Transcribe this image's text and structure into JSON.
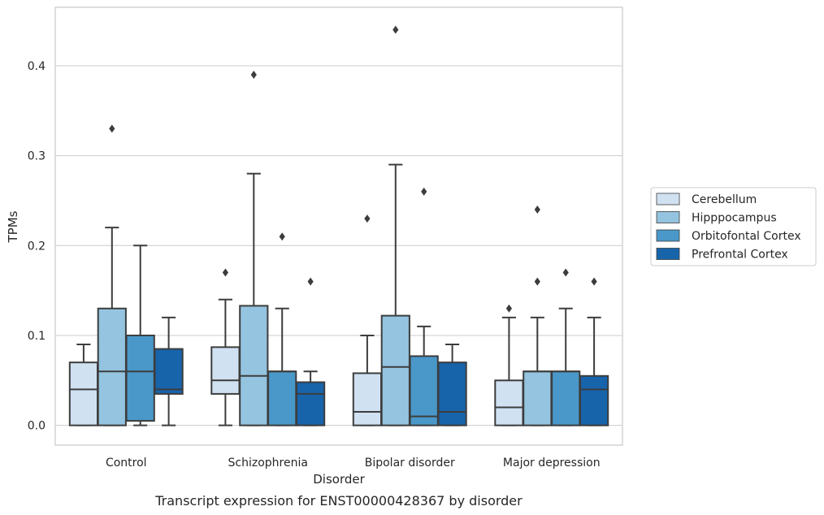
{
  "chart_data": {
    "type": "box",
    "title": "",
    "caption": "Transcript expression for ENST00000428367 by disorder",
    "xlabel": "Disorder",
    "ylabel": "TPMs",
    "ylim": [
      -0.022,
      0.465
    ],
    "yticks": [
      0.0,
      0.1,
      0.2,
      0.3,
      0.4
    ],
    "ytick_labels": [
      "0.0",
      "0.1",
      "0.2",
      "0.3",
      "0.4"
    ],
    "grid": "horizontal",
    "legend_position": "right",
    "categories": [
      "Control",
      "Schizophrenia",
      "Bipolar disorder",
      "Major depression"
    ],
    "series": [
      {
        "name": "Cerebellum",
        "color": "#d0e1f2",
        "boxes": [
          {
            "whisker_low": 0.0,
            "q1": 0.0,
            "median": 0.04,
            "q3": 0.07,
            "whisker_high": 0.09,
            "outliers": []
          },
          {
            "whisker_low": 0.0,
            "q1": 0.035,
            "median": 0.05,
            "q3": 0.087,
            "whisker_high": 0.14,
            "outliers": [
              0.17
            ]
          },
          {
            "whisker_low": 0.0,
            "q1": 0.0,
            "median": 0.015,
            "q3": 0.058,
            "whisker_high": 0.1,
            "outliers": [
              0.23
            ]
          },
          {
            "whisker_low": 0.0,
            "q1": 0.0,
            "median": 0.02,
            "q3": 0.05,
            "whisker_high": 0.12,
            "outliers": [
              0.13
            ]
          }
        ]
      },
      {
        "name": "Hipppocampus",
        "color": "#94c4df",
        "boxes": [
          {
            "whisker_low": 0.0,
            "q1": 0.0,
            "median": 0.06,
            "q3": 0.13,
            "whisker_high": 0.22,
            "outliers": [
              0.33
            ]
          },
          {
            "whisker_low": 0.0,
            "q1": 0.0,
            "median": 0.055,
            "q3": 0.133,
            "whisker_high": 0.28,
            "outliers": [
              0.39
            ]
          },
          {
            "whisker_low": 0.0,
            "q1": 0.0,
            "median": 0.065,
            "q3": 0.122,
            "whisker_high": 0.29,
            "outliers": [
              0.44
            ]
          },
          {
            "whisker_low": 0.0,
            "q1": 0.0,
            "median": 0.06,
            "q3": 0.06,
            "whisker_high": 0.12,
            "outliers": [
              0.16,
              0.24
            ]
          }
        ]
      },
      {
        "name": "Orbitofontal Cortex",
        "color": "#4a98c9",
        "boxes": [
          {
            "whisker_low": 0.0,
            "q1": 0.005,
            "median": 0.06,
            "q3": 0.1,
            "whisker_high": 0.2,
            "outliers": []
          },
          {
            "whisker_low": 0.0,
            "q1": 0.0,
            "median": 0.06,
            "q3": 0.06,
            "whisker_high": 0.13,
            "outliers": [
              0.21
            ]
          },
          {
            "whisker_low": 0.0,
            "q1": 0.0,
            "median": 0.01,
            "q3": 0.077,
            "whisker_high": 0.11,
            "outliers": [
              0.26
            ]
          },
          {
            "whisker_low": 0.0,
            "q1": 0.0,
            "median": 0.06,
            "q3": 0.06,
            "whisker_high": 0.13,
            "outliers": [
              0.17
            ]
          }
        ]
      },
      {
        "name": "Prefrontal Cortex",
        "color": "#1764ab",
        "boxes": [
          {
            "whisker_low": 0.0,
            "q1": 0.035,
            "median": 0.04,
            "q3": 0.085,
            "whisker_high": 0.12,
            "outliers": []
          },
          {
            "whisker_low": 0.0,
            "q1": 0.0,
            "median": 0.035,
            "q3": 0.048,
            "whisker_high": 0.06,
            "outliers": [
              0.16
            ]
          },
          {
            "whisker_low": 0.0,
            "q1": 0.0,
            "median": 0.015,
            "q3": 0.07,
            "whisker_high": 0.09,
            "outliers": []
          },
          {
            "whisker_low": 0.0,
            "q1": 0.0,
            "median": 0.04,
            "q3": 0.055,
            "whisker_high": 0.12,
            "outliers": [
              0.16
            ]
          }
        ]
      }
    ]
  }
}
